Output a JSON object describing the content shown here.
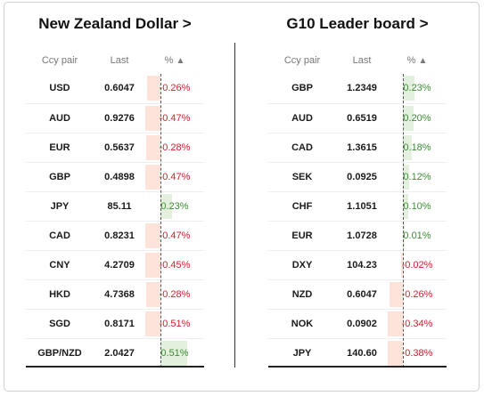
{
  "left": {
    "title": "New Zealand Dollar >",
    "headers": {
      "pair": "Ccy pair",
      "last": "Last",
      "pct": "%",
      "sort_icon": "▲"
    },
    "rows": [
      {
        "pair": "USD",
        "last": "0.6047",
        "pct": "-0.26%",
        "value": -0.26
      },
      {
        "pair": "AUD",
        "last": "0.9276",
        "pct": "-0.47%",
        "value": -0.47
      },
      {
        "pair": "EUR",
        "last": "0.5637",
        "pct": "-0.28%",
        "value": -0.28
      },
      {
        "pair": "GBP",
        "last": "0.4898",
        "pct": "-0.47%",
        "value": -0.47
      },
      {
        "pair": "JPY",
        "last": "85.11",
        "pct": "0.23%",
        "value": 0.23
      },
      {
        "pair": "CAD",
        "last": "0.8231",
        "pct": "-0.47%",
        "value": -0.47
      },
      {
        "pair": "CNY",
        "last": "4.2709",
        "pct": "-0.45%",
        "value": -0.45
      },
      {
        "pair": "HKD",
        "last": "4.7368",
        "pct": "-0.28%",
        "value": -0.28
      },
      {
        "pair": "SGD",
        "last": "0.8171",
        "pct": "-0.51%",
        "value": -0.51
      },
      {
        "pair": "GBP/NZD",
        "last": "2.0427",
        "pct": "0.51%",
        "value": 0.51
      }
    ]
  },
  "right": {
    "title": "G10 Leader board >",
    "headers": {
      "pair": "Ccy pair",
      "last": "Last",
      "pct": "%",
      "sort_icon": "▲"
    },
    "rows": [
      {
        "pair": "GBP",
        "last": "1.2349",
        "pct": "0.23%",
        "value": 0.23
      },
      {
        "pair": "AUD",
        "last": "0.6519",
        "pct": "0.20%",
        "value": 0.2
      },
      {
        "pair": "CAD",
        "last": "1.3615",
        "pct": "0.18%",
        "value": 0.18
      },
      {
        "pair": "SEK",
        "last": "0.0925",
        "pct": "0.12%",
        "value": 0.12
      },
      {
        "pair": "CHF",
        "last": "1.1051",
        "pct": "0.10%",
        "value": 0.1
      },
      {
        "pair": "EUR",
        "last": "1.0728",
        "pct": "0.01%",
        "value": 0.01
      },
      {
        "pair": "DXY",
        "last": "104.23",
        "pct": "-0.02%",
        "value": -0.02
      },
      {
        "pair": "NZD",
        "last": "0.6047",
        "pct": "-0.26%",
        "value": -0.26
      },
      {
        "pair": "NOK",
        "last": "0.0902",
        "pct": "-0.34%",
        "value": -0.34
      },
      {
        "pair": "JPY",
        "last": "140.60",
        "pct": "-0.38%",
        "value": -0.38
      }
    ]
  },
  "colors": {
    "negative": "#c8242f",
    "positive": "#3d8a36",
    "negative_bg": "#fde3da",
    "positive_bg": "#e3f0dd"
  }
}
